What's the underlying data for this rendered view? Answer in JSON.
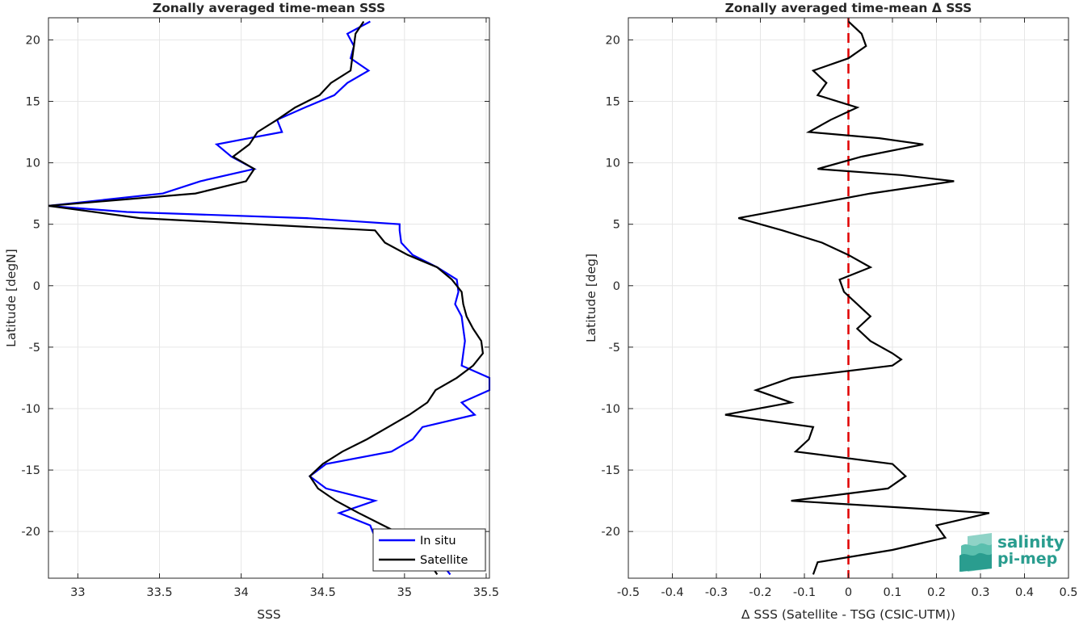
{
  "colors": {
    "in_situ": "#0000ff",
    "satellite": "#000000",
    "zero_line": "#e00000",
    "grid": "#e6e6e6",
    "axes": "#262626",
    "logo": "#2a9d8f"
  },
  "logo": {
    "line1": "salinity",
    "line2": "pi-mep",
    "icon": "salinity-wave-icon"
  },
  "chart_data": [
    {
      "type": "line",
      "title": "Zonally averaged time-mean SSS",
      "xlabel": "SSS",
      "ylabel": "Latitude [degN]",
      "xlim": [
        32.82,
        35.52
      ],
      "ylim": [
        -23.8,
        21.8
      ],
      "xticks": [
        "33",
        "33.5",
        "34",
        "34.5",
        "35",
        "35.5"
      ],
      "xtick_values": [
        33,
        33.5,
        34,
        34.5,
        35,
        35.5
      ],
      "yticks": [
        "20",
        "15",
        "10",
        "5",
        "0",
        "-5",
        "-10",
        "-15",
        "-20"
      ],
      "ytick_values": [
        20,
        15,
        10,
        5,
        0,
        -5,
        -10,
        -15,
        -20
      ],
      "grid": true,
      "legend": {
        "placement": "bottom-right",
        "entries": [
          "In situ",
          "Satellite"
        ]
      },
      "series": [
        {
          "name": "In situ",
          "points": [
            [
              34.79,
              21.5
            ],
            [
              34.65,
              20.5
            ],
            [
              34.69,
              19.5
            ],
            [
              34.67,
              18.5
            ],
            [
              34.78,
              17.5
            ],
            [
              34.65,
              16.5
            ],
            [
              34.57,
              15.5
            ],
            [
              34.39,
              14.5
            ],
            [
              34.22,
              13.5
            ],
            [
              34.25,
              12.5
            ],
            [
              34.05,
              12
            ],
            [
              33.85,
              11.5
            ],
            [
              33.94,
              10.5
            ],
            [
              34.08,
              9.5
            ],
            [
              33.75,
              8.5
            ],
            [
              33.52,
              7.5
            ],
            [
              32.82,
              6.5
            ],
            [
              33.3,
              6
            ],
            [
              34.4,
              5.5
            ],
            [
              34.97,
              5
            ],
            [
              34.97,
              4.5
            ],
            [
              34.98,
              3.5
            ],
            [
              35.05,
              2.5
            ],
            [
              35.2,
              1.5
            ],
            [
              35.32,
              0.5
            ],
            [
              35.33,
              -0.5
            ],
            [
              35.31,
              -1.5
            ],
            [
              35.35,
              -2.5
            ],
            [
              35.36,
              -3.5
            ],
            [
              35.37,
              -4.5
            ],
            [
              35.36,
              -5.5
            ],
            [
              35.35,
              -6.5
            ],
            [
              35.52,
              -7.5
            ],
            [
              35.52,
              -8.5
            ],
            [
              35.35,
              -9.5
            ],
            [
              35.43,
              -10.5
            ],
            [
              35.11,
              -11.5
            ],
            [
              35.05,
              -12.5
            ],
            [
              34.92,
              -13.5
            ],
            [
              34.52,
              -14.5
            ],
            [
              34.42,
              -15.5
            ],
            [
              34.52,
              -16.5
            ],
            [
              34.82,
              -17.5
            ],
            [
              34.6,
              -18.5
            ],
            [
              34.79,
              -19.5
            ],
            [
              34.82,
              -20.5
            ],
            [
              35.05,
              -21.5
            ],
            [
              35.22,
              -22.5
            ],
            [
              35.28,
              -23.5
            ]
          ]
        },
        {
          "name": "Satellite",
          "points": [
            [
              34.75,
              21.5
            ],
            [
              34.7,
              20.5
            ],
            [
              34.69,
              19.5
            ],
            [
              34.68,
              18.5
            ],
            [
              34.67,
              17.5
            ],
            [
              34.55,
              16.5
            ],
            [
              34.48,
              15.5
            ],
            [
              34.33,
              14.5
            ],
            [
              34.22,
              13.5
            ],
            [
              34.1,
              12.5
            ],
            [
              34.05,
              11.5
            ],
            [
              33.95,
              10.5
            ],
            [
              34.08,
              9.5
            ],
            [
              34.03,
              8.5
            ],
            [
              33.72,
              7.5
            ],
            [
              32.82,
              6.5
            ],
            [
              33.38,
              5.5
            ],
            [
              34.82,
              4.5
            ],
            [
              34.88,
              3.5
            ],
            [
              35.02,
              2.5
            ],
            [
              35.2,
              1.5
            ],
            [
              35.29,
              0.5
            ],
            [
              35.35,
              -0.5
            ],
            [
              35.36,
              -1.5
            ],
            [
              35.38,
              -2.5
            ],
            [
              35.42,
              -3.5
            ],
            [
              35.47,
              -4.5
            ],
            [
              35.48,
              -5.5
            ],
            [
              35.42,
              -6.5
            ],
            [
              35.32,
              -7.5
            ],
            [
              35.19,
              -8.5
            ],
            [
              35.14,
              -9.5
            ],
            [
              35.03,
              -10.5
            ],
            [
              34.9,
              -11.5
            ],
            [
              34.77,
              -12.5
            ],
            [
              34.62,
              -13.5
            ],
            [
              34.5,
              -14.5
            ],
            [
              34.42,
              -15.5
            ],
            [
              34.47,
              -16.5
            ],
            [
              34.58,
              -17.5
            ],
            [
              34.72,
              -18.5
            ],
            [
              34.87,
              -19.5
            ],
            [
              35.02,
              -20.5
            ],
            [
              35.1,
              -21.5
            ],
            [
              35.15,
              -22.5
            ],
            [
              35.2,
              -23.5
            ]
          ]
        }
      ]
    },
    {
      "type": "line",
      "title": "Zonally averaged time-mean Δ SSS",
      "xlabel": "Δ SSS (Satellite - TSG (CSIC-UTM))",
      "ylabel": "Latitude [deg]",
      "xlim": [
        -0.5,
        0.5
      ],
      "ylim": [
        -23.8,
        21.8
      ],
      "xticks": [
        "-0.5",
        "-0.4",
        "-0.3",
        "-0.2",
        "-0.1",
        "0",
        "0.1",
        "0.2",
        "0.3",
        "0.4",
        "0.5"
      ],
      "xtick_values": [
        -0.5,
        -0.4,
        -0.3,
        -0.2,
        -0.1,
        0,
        0.1,
        0.2,
        0.3,
        0.4,
        0.5
      ],
      "yticks": [
        "20",
        "15",
        "10",
        "5",
        "0",
        "-5",
        "-10",
        "-15",
        "-20"
      ],
      "ytick_values": [
        20,
        15,
        10,
        5,
        0,
        -5,
        -10,
        -15,
        -20
      ],
      "grid": true,
      "reference_line": {
        "x": 0,
        "style": "dashed"
      },
      "series": [
        {
          "name": "",
          "points": [
            [
              0,
              21.5
            ],
            [
              0.03,
              20.5
            ],
            [
              0.04,
              19.5
            ],
            [
              0,
              18.5
            ],
            [
              -0.08,
              17.5
            ],
            [
              -0.05,
              16.5
            ],
            [
              -0.07,
              15.5
            ],
            [
              0.02,
              14.5
            ],
            [
              -0.04,
              13.5
            ],
            [
              -0.09,
              12.5
            ],
            [
              0.07,
              12
            ],
            [
              0.17,
              11.5
            ],
            [
              0.03,
              10.5
            ],
            [
              -0.07,
              9.5
            ],
            [
              0.12,
              9
            ],
            [
              0.24,
              8.5
            ],
            [
              0.05,
              7.5
            ],
            [
              -0.1,
              6.5
            ],
            [
              -0.25,
              5.5
            ],
            [
              -0.15,
              4.5
            ],
            [
              -0.06,
              3.5
            ],
            [
              0,
              2.5
            ],
            [
              0.05,
              1.5
            ],
            [
              -0.02,
              0.5
            ],
            [
              -0.01,
              -0.5
            ],
            [
              0.02,
              -1.5
            ],
            [
              0.05,
              -2.5
            ],
            [
              0.02,
              -3.5
            ],
            [
              0.05,
              -4.5
            ],
            [
              0.1,
              -5.5
            ],
            [
              0.12,
              -6
            ],
            [
              0.1,
              -6.5
            ],
            [
              -0.13,
              -7.5
            ],
            [
              -0.21,
              -8.5
            ],
            [
              -0.13,
              -9.5
            ],
            [
              -0.28,
              -10.5
            ],
            [
              -0.08,
              -11.5
            ],
            [
              -0.09,
              -12.5
            ],
            [
              -0.12,
              -13.5
            ],
            [
              0.1,
              -14.5
            ],
            [
              0.13,
              -15.5
            ],
            [
              0.09,
              -16.5
            ],
            [
              -0.13,
              -17.5
            ],
            [
              0.32,
              -18.5
            ],
            [
              0.2,
              -19.5
            ],
            [
              0.22,
              -20.5
            ],
            [
              0.1,
              -21.5
            ],
            [
              -0.07,
              -22.5
            ],
            [
              -0.08,
              -23.5
            ]
          ]
        }
      ]
    }
  ]
}
